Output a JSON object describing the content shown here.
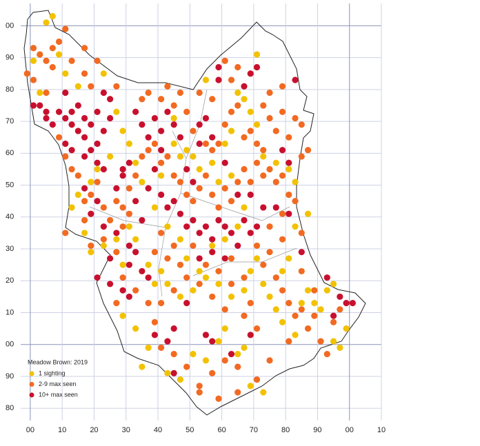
{
  "chart_data": {
    "type": "scatter",
    "legend_title": "Meadow Brown:  2019",
    "xlim": [
      -3,
      110
    ],
    "ylim": [
      -26,
      107
    ],
    "xticks": [
      {
        "value": 0,
        "label": "00"
      },
      10,
      20,
      30,
      40,
      50,
      60,
      70,
      80,
      90,
      {
        "value": 100,
        "label": "00"
      },
      {
        "value": 110,
        "label": "10"
      }
    ],
    "yticks": [
      {
        "value": 100,
        "label": "00"
      },
      90,
      80,
      70,
      60,
      50,
      40,
      30,
      20,
      10,
      {
        "value": 0,
        "label": "00"
      },
      {
        "value": -10,
        "label": "90"
      },
      {
        "value": -20,
        "label": "80"
      }
    ],
    "grid": true,
    "series": [
      {
        "name": "1 sighting",
        "color": "#f2c200",
        "x": [
          5,
          7,
          9,
          3,
          1,
          11,
          15,
          23,
          27,
          29,
          31,
          33,
          35,
          25,
          21,
          19,
          15,
          13,
          17,
          19,
          23,
          27,
          29,
          31,
          33,
          37,
          39,
          41,
          43,
          47,
          51,
          55,
          59,
          63,
          67,
          69,
          71,
          73,
          75,
          77,
          79,
          83,
          85,
          87,
          89,
          91,
          95,
          97,
          99,
          93,
          95,
          87,
          83,
          81,
          77,
          73,
          71,
          69,
          67,
          63,
          61,
          57,
          53,
          51,
          49,
          45,
          41,
          39,
          43,
          47,
          49,
          53,
          57,
          61,
          65,
          67,
          63,
          59,
          35,
          37,
          43,
          47,
          51,
          55,
          59,
          61,
          65,
          67,
          69,
          73,
          71,
          65,
          55,
          45,
          47,
          81,
          83,
          79,
          29,
          33
        ],
        "values": [
          101,
          103,
          91,
          79,
          89,
          85,
          81,
          85,
          73,
          67,
          63,
          57,
          51,
          59,
          55,
          51,
          47,
          43,
          35,
          29,
          31,
          33,
          25,
          37,
          33,
          25,
          19,
          23,
          19,
          15,
          17,
          21,
          19,
          15,
          17,
          23,
          27,
          19,
          15,
          11,
          7,
          3,
          13,
          17,
          13,
          11,
          1,
          -1,
          5,
          17,
          19,
          41,
          51,
          55,
          57,
          59,
          69,
          73,
          77,
          67,
          63,
          57,
          55,
          59,
          61,
          63,
          53,
          43,
          37,
          33,
          27,
          23,
          31,
          33,
          37,
          43,
          53,
          51,
          -7,
          -1,
          -9,
          -11,
          -3,
          -5,
          1,
          5,
          -3,
          -1,
          -13,
          -15,
          91,
          79,
          83,
          71,
          59,
          27,
          37,
          23,
          9,
          5
        ]
      },
      {
        "name": "2-9 max seen",
        "color": "#f26a21",
        "x": [
          -1,
          1,
          3,
          5,
          7,
          5,
          9,
          11,
          13,
          17,
          19,
          9,
          11,
          13,
          15,
          17,
          19,
          21,
          23,
          25,
          27,
          29,
          31,
          33,
          35,
          37,
          39,
          41,
          43,
          45,
          47,
          49,
          51,
          53,
          55,
          57,
          59,
          61,
          63,
          65,
          67,
          69,
          71,
          73,
          75,
          77,
          79,
          81,
          83,
          35,
          37,
          41,
          45,
          49,
          51,
          55,
          57,
          59,
          61,
          63,
          65,
          67,
          69,
          71,
          73,
          75,
          77,
          79,
          81,
          83,
          85,
          73,
          75,
          79,
          65,
          63,
          61,
          85,
          79,
          75,
          73,
          77,
          79,
          81,
          83,
          85,
          87,
          89,
          91,
          93,
          95,
          97,
          89,
          85,
          81,
          75,
          71,
          65,
          61,
          57,
          53,
          49,
          45,
          41,
          39,
          37,
          33,
          29,
          27,
          41,
          45,
          49,
          53,
          57,
          61,
          63,
          67,
          69,
          71,
          65,
          59,
          53,
          27,
          29,
          31,
          23,
          19,
          17,
          11,
          87,
          85,
          41,
          43,
          45,
          47,
          39,
          51,
          55,
          59,
          63,
          67,
          71,
          75,
          79,
          53,
          57,
          47,
          43,
          27,
          21,
          17,
          7,
          1
        ],
        "values": [
          85,
          83,
          91,
          89,
          87,
          79,
          95,
          99,
          89,
          85,
          81,
          65,
          59,
          55,
          53,
          45,
          47,
          51,
          43,
          39,
          45,
          43,
          49,
          53,
          59,
          61,
          63,
          57,
          59,
          53,
          51,
          47,
          45,
          49,
          53,
          47,
          43,
          49,
          45,
          51,
          55,
          51,
          57,
          53,
          55,
          51,
          53,
          47,
          45,
          77,
          79,
          77,
          75,
          73,
          67,
          63,
          61,
          63,
          69,
          73,
          75,
          65,
          67,
          63,
          61,
          71,
          67,
          73,
          65,
          71,
          59,
          75,
          79,
          81,
          87,
          83,
          89,
          35,
          33,
          29,
          25,
          21,
          17,
          13,
          9,
          11,
          5,
          9,
          1,
          -3,
          7,
          11,
          17,
          23,
          1,
          -5,
          -11,
          -7,
          -5,
          -9,
          -13,
          -7,
          -3,
          -1,
          7,
          13,
          17,
          21,
          13,
          13,
          17,
          21,
          19,
          15,
          11,
          19,
          9,
          13,
          5,
          -15,
          -17,
          -15,
          29,
          37,
          41,
          33,
          31,
          39,
          35,
          61,
          69,
          35,
          27,
          31,
          25,
          29,
          31,
          25,
          23,
          27,
          21,
          31,
          37,
          41,
          79,
          77,
          79,
          81,
          81,
          89,
          93,
          93,
          93
        ]
      },
      {
        "name": "10+ max seen",
        "color": "#c8102e",
        "x": [
          1,
          3,
          5,
          5,
          7,
          9,
          11,
          11,
          13,
          13,
          15,
          15,
          17,
          17,
          19,
          19,
          21,
          21,
          23,
          23,
          25,
          25,
          13,
          11,
          17,
          21,
          23,
          29,
          31,
          33,
          35,
          37,
          39,
          41,
          43,
          45,
          47,
          41,
          39,
          37,
          41,
          43,
          45,
          47,
          49,
          51,
          53,
          55,
          57,
          59,
          61,
          63,
          65,
          67,
          69,
          71,
          31,
          33,
          35,
          37,
          29,
          31,
          25,
          39,
          43,
          45,
          45,
          49,
          53,
          57,
          61,
          49,
          51,
          53,
          55,
          57,
          59,
          59,
          67,
          69,
          71,
          83,
          79,
          81,
          77,
          81,
          85,
          97,
          99,
          101,
          95,
          93,
          19,
          21,
          17,
          23,
          27,
          55,
          57,
          63,
          69,
          53,
          61,
          65,
          69,
          73,
          27,
          29,
          33,
          35,
          25,
          31,
          21
        ],
        "values": [
          75,
          75,
          73,
          71,
          69,
          73,
          79,
          71,
          73,
          69,
          67,
          75,
          71,
          65,
          69,
          61,
          73,
          63,
          79,
          67,
          77,
          71,
          61,
          63,
          59,
          57,
          55,
          55,
          57,
          73,
          69,
          65,
          71,
          67,
          73,
          69,
          65,
          61,
          55,
          49,
          47,
          43,
          45,
          41,
          37,
          39,
          35,
          37,
          33,
          39,
          37,
          35,
          31,
          39,
          35,
          37,
          31,
          29,
          23,
          21,
          17,
          15,
          19,
          3,
          1,
          5,
          -9,
          13,
          27,
          29,
          27,
          55,
          51,
          63,
          71,
          65,
          83,
          87,
          81,
          85,
          87,
          83,
          61,
          57,
          43,
          41,
          29,
          15,
          13,
          13,
          9,
          21,
          41,
          45,
          49,
          37,
          35,
          3,
          1,
          -3,
          3,
          69,
          57,
          47,
          47,
          43,
          49,
          53,
          45,
          39,
          27,
          25,
          21
        ]
      }
    ]
  }
}
